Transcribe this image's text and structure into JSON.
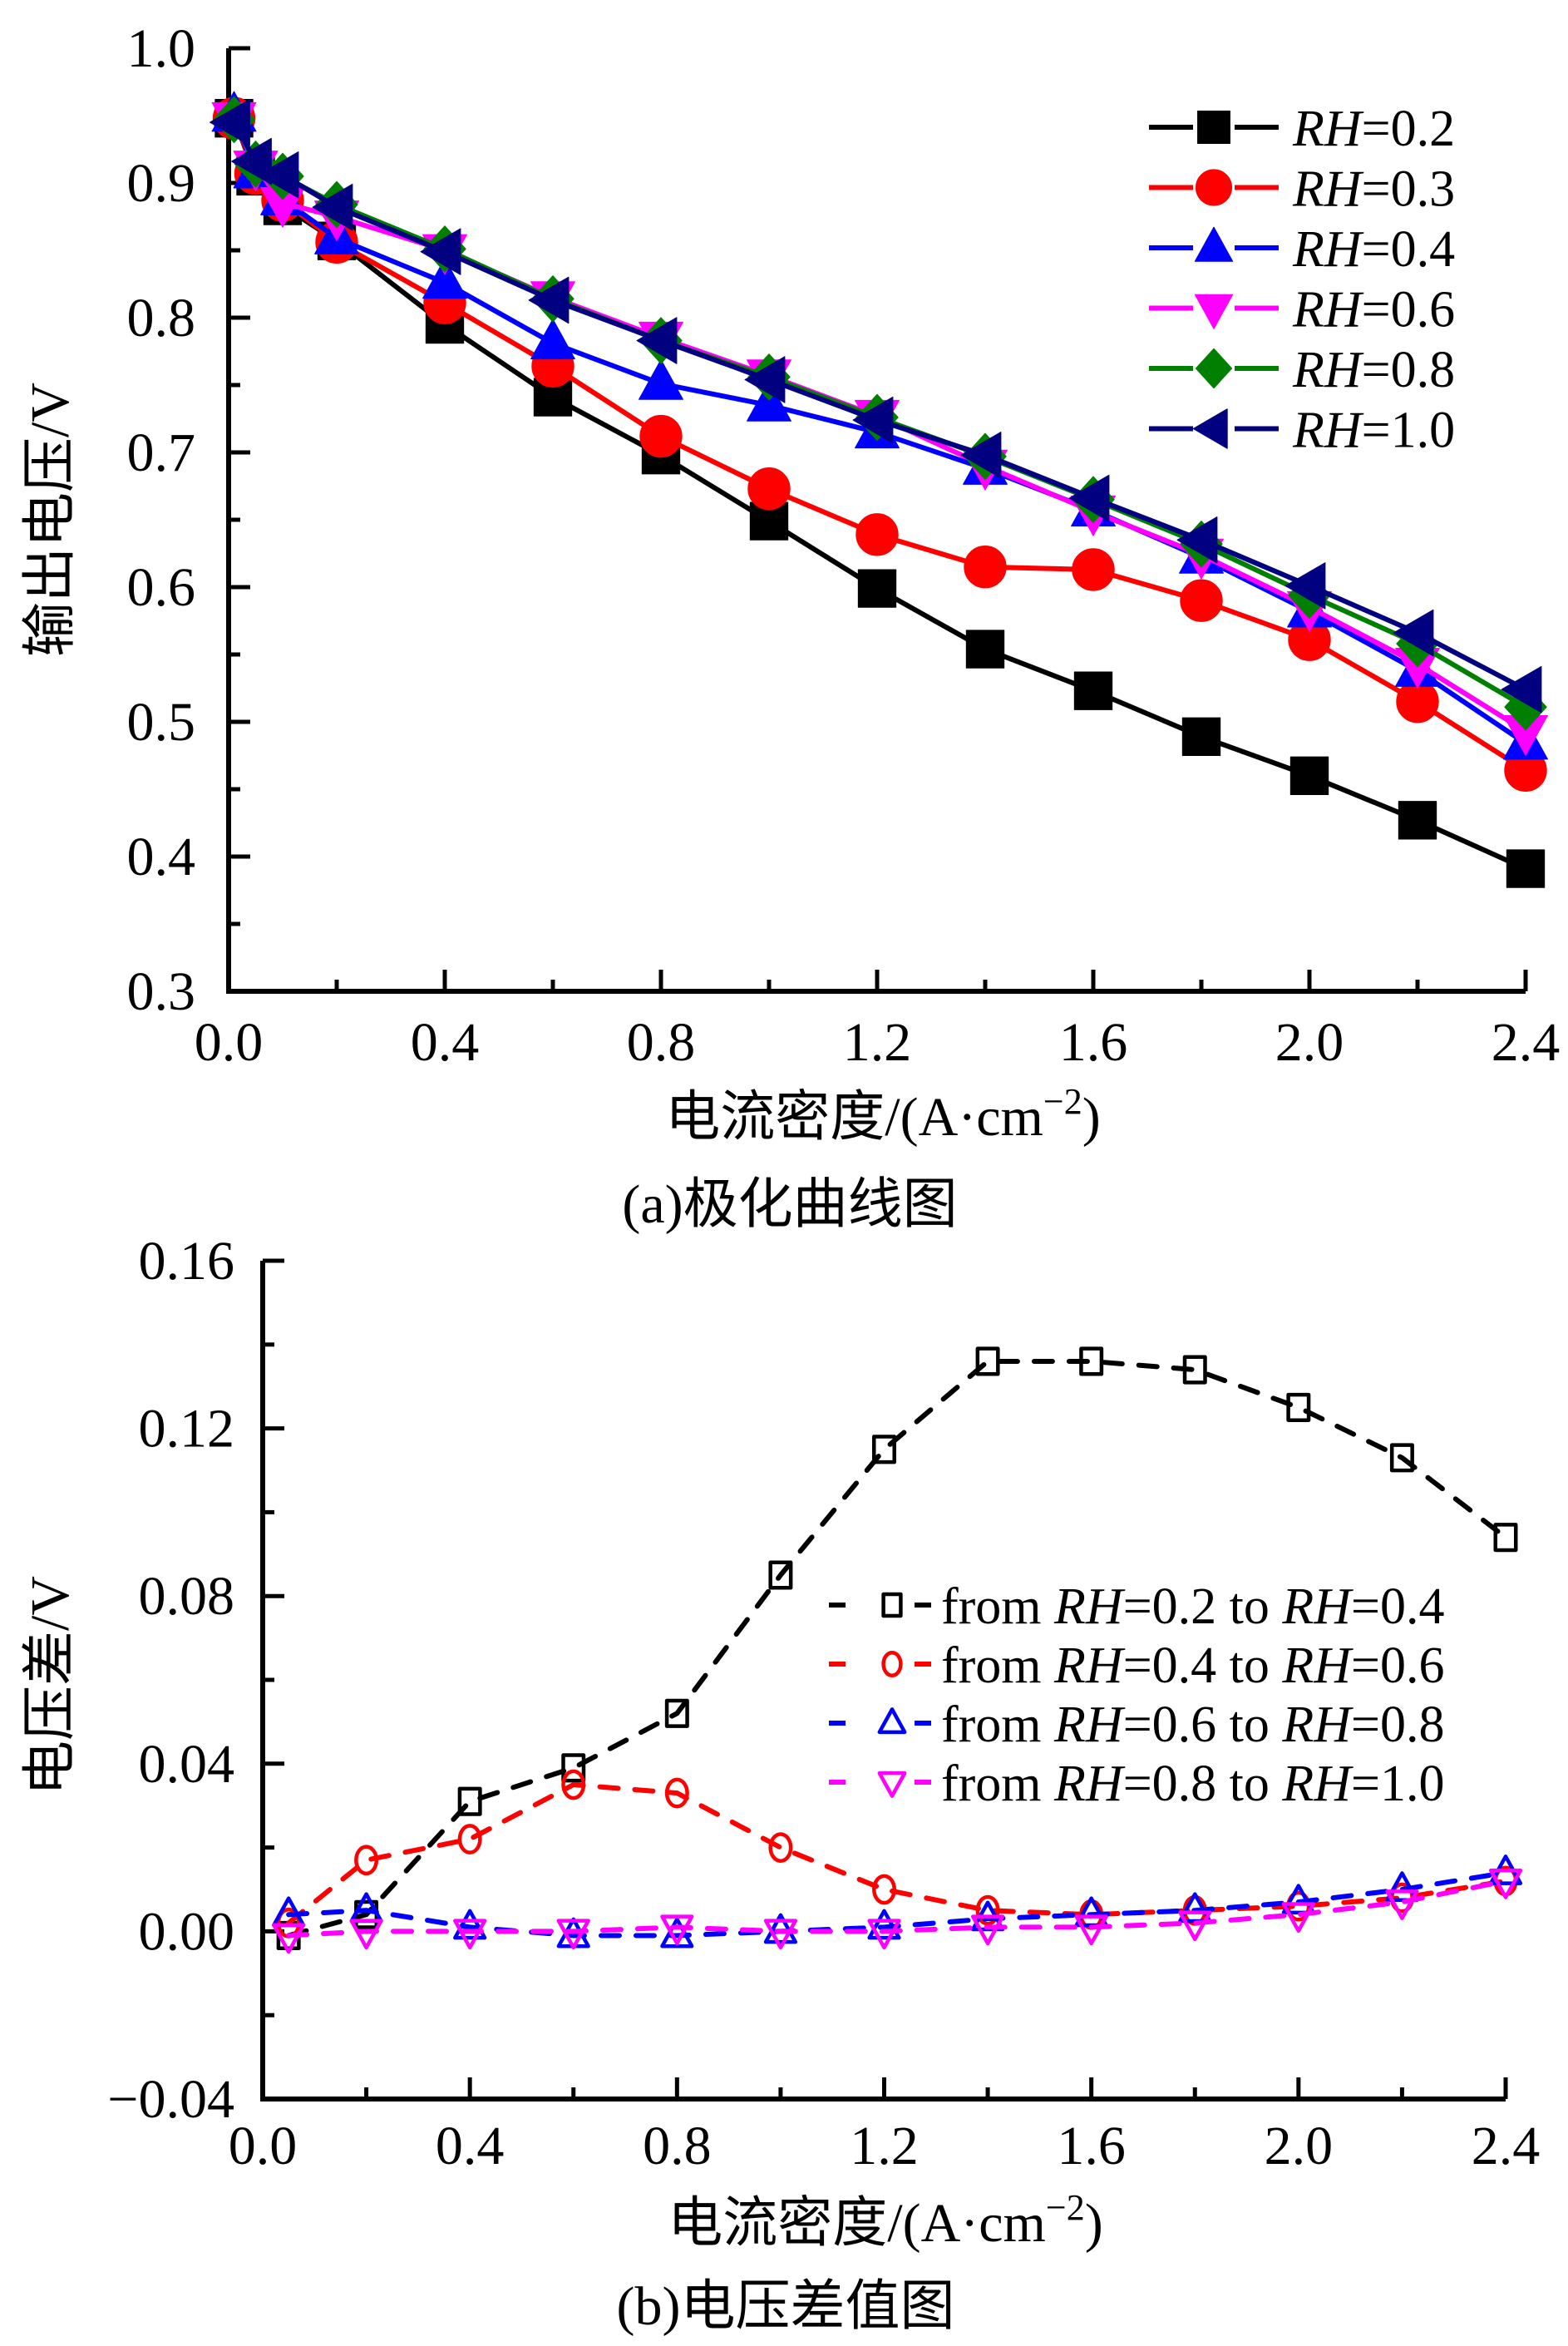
{
  "chart_data": [
    {
      "id": "a",
      "type": "line",
      "title": "",
      "caption": "(a)极化曲线图",
      "xlabel": "电流密度/(A·cm",
      "xlabel_sup": "−2",
      "xlabel_close": ")",
      "ylabel": "输出电压/V",
      "xlim": [
        0,
        2.4
      ],
      "ylim": [
        0.3,
        1.0
      ],
      "xticks": [
        0.0,
        0.4,
        0.8,
        1.2,
        1.6,
        2.0,
        2.4
      ],
      "xtick_labels": [
        "0.0",
        "0.4",
        "0.8",
        "1.2",
        "1.6",
        "2.0",
        "2.4"
      ],
      "yticks": [
        0.3,
        0.4,
        0.5,
        0.6,
        0.7,
        0.8,
        0.9,
        1.0
      ],
      "ytick_labels": [
        "0.3",
        "0.4",
        "0.5",
        "0.6",
        "0.7",
        "0.8",
        "0.9",
        "1.0"
      ],
      "grid": false,
      "legend_position": "top-right",
      "x": [
        0.01,
        0.05,
        0.1,
        0.2,
        0.4,
        0.6,
        0.8,
        1.0,
        1.2,
        1.4,
        1.6,
        1.8,
        2.0,
        2.2,
        2.4
      ],
      "series": [
        {
          "name": "RH=0.2",
          "label_italic": "RH",
          "label_rest": "=0.2",
          "color": "#000000",
          "marker": "square",
          "filled": true,
          "dashed": false,
          "values": [
            0.948,
            0.905,
            0.883,
            0.857,
            0.795,
            0.741,
            0.698,
            0.649,
            0.599,
            0.554,
            0.523,
            0.489,
            0.46,
            0.427,
            0.391
          ]
        },
        {
          "name": "RH=0.3",
          "label_italic": "RH",
          "label_rest": "=0.3",
          "color": "#ff0000",
          "marker": "circle",
          "filled": true,
          "dashed": false,
          "values": [
            0.948,
            0.907,
            0.887,
            0.856,
            0.811,
            0.764,
            0.712,
            0.673,
            0.639,
            0.615,
            0.613,
            0.59,
            0.561,
            0.515,
            0.464
          ]
        },
        {
          "name": "RH=0.4",
          "label_italic": "RH",
          "label_rest": "=0.4",
          "color": "#0000ff",
          "marker": "triangle-up",
          "filled": true,
          "dashed": false,
          "values": [
            0.95,
            0.908,
            0.888,
            0.859,
            0.826,
            0.781,
            0.751,
            0.735,
            0.715,
            0.688,
            0.657,
            0.622,
            0.582,
            0.538,
            0.484
          ]
        },
        {
          "name": "RH=0.6",
          "label_italic": "RH",
          "label_rest": "=0.6",
          "color": "#ff00ff",
          "marker": "triangle-down",
          "filled": true,
          "dashed": false,
          "values": [
            0.948,
            0.912,
            0.885,
            0.875,
            0.85,
            0.815,
            0.785,
            0.757,
            0.727,
            0.69,
            0.656,
            0.624,
            0.585,
            0.543,
            0.493
          ]
        },
        {
          "name": "RH=0.8",
          "label_italic": "RH",
          "label_rest": "=0.8",
          "color": "#007f00",
          "marker": "diamond",
          "filled": true,
          "dashed": false,
          "values": [
            0.947,
            0.914,
            0.905,
            0.884,
            0.851,
            0.814,
            0.783,
            0.756,
            0.726,
            0.697,
            0.665,
            0.632,
            0.594,
            0.558,
            0.511
          ]
        },
        {
          "name": "RH=1.0",
          "label_italic": "RH",
          "label_rest": "=1.0",
          "color": "#000080",
          "marker": "triangle-left",
          "filled": true,
          "dashed": false,
          "values": [
            0.945,
            0.916,
            0.906,
            0.882,
            0.849,
            0.813,
            0.783,
            0.754,
            0.724,
            0.698,
            0.666,
            0.635,
            0.601,
            0.566,
            0.524
          ]
        }
      ]
    },
    {
      "id": "b",
      "type": "line",
      "title": "",
      "caption": "(b)电压差值图",
      "xlabel": "电流密度/(A·cm",
      "xlabel_sup": "−2",
      "xlabel_close": ")",
      "ylabel": "电压差/V",
      "xlim": [
        0,
        2.4
      ],
      "ylim": [
        -0.04,
        0.16
      ],
      "xticks": [
        0.0,
        0.4,
        0.8,
        1.2,
        1.6,
        2.0,
        2.4
      ],
      "xtick_labels": [
        "0.0",
        "0.4",
        "0.8",
        "1.2",
        "1.6",
        "2.0",
        "2.4"
      ],
      "yticks": [
        -0.04,
        0.0,
        0.04,
        0.08,
        0.12,
        0.16
      ],
      "ytick_labels": [
        "−0.04",
        "0.00",
        "0.04",
        "0.08",
        "0.12",
        "0.16"
      ],
      "grid": false,
      "legend_position": "center-right",
      "x": [
        0.05,
        0.2,
        0.4,
        0.6,
        0.8,
        1.0,
        1.2,
        1.4,
        1.6,
        1.8,
        2.0,
        2.2,
        2.4
      ],
      "series": [
        {
          "name": "from RH=0.2 to RH=0.4",
          "label_parts": [
            "from ",
            "RH",
            "=0.2 to ",
            "RH",
            "=0.4"
          ],
          "color": "#000000",
          "marker": "square",
          "filled": false,
          "dashed": true,
          "values": [
            -0.001,
            0.004,
            0.031,
            0.039,
            0.052,
            0.085,
            0.115,
            0.136,
            0.136,
            0.134,
            0.125,
            0.113,
            0.094
          ]
        },
        {
          "name": "from RH=0.4 to RH=0.6",
          "label_parts": [
            "from ",
            "RH",
            "=0.4 to ",
            "RH",
            "=0.6"
          ],
          "color": "#ff0000",
          "marker": "circle",
          "filled": false,
          "dashed": true,
          "values": [
            0.002,
            0.017,
            0.022,
            0.035,
            0.033,
            0.02,
            0.01,
            0.005,
            0.004,
            0.005,
            0.006,
            0.008,
            0.012
          ]
        },
        {
          "name": "from RH=0.6 to RH=0.8",
          "label_parts": [
            "from ",
            "RH",
            "=0.6 to ",
            "RH",
            "=0.8"
          ],
          "color": "#0000ff",
          "marker": "triangle-up",
          "filled": false,
          "dashed": true,
          "values": [
            0.004,
            0.005,
            0.001,
            -0.001,
            -0.001,
            0.0,
            0.001,
            0.003,
            0.004,
            0.005,
            0.007,
            0.01,
            0.014
          ]
        },
        {
          "name": "from RH=0.8 to RH=1.0",
          "label_parts": [
            "from ",
            "RH",
            "=0.8 to ",
            "RH",
            "=1.0"
          ],
          "color": "#ff00ff",
          "marker": "triangle-down",
          "filled": false,
          "dashed": true,
          "values": [
            -0.001,
            0.0,
            0.0,
            0.0,
            0.001,
            0.0,
            0.0,
            0.001,
            0.001,
            0.002,
            0.004,
            0.007,
            0.012
          ]
        }
      ]
    }
  ]
}
